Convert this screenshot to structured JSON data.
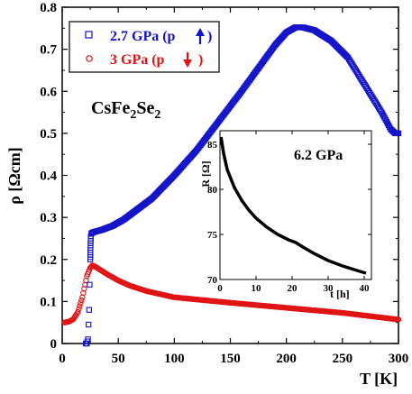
{
  "chart_data": [
    {
      "type": "scatter",
      "xlabel": "T [K]",
      "ylabel": "ρ [Ωcm]",
      "xlim": [
        0,
        300
      ],
      "ylim": [
        0,
        0.8
      ],
      "xticks": [
        "0",
        "50",
        "100",
        "150",
        "200",
        "250",
        "300"
      ],
      "yticks": [
        "0",
        "0.1",
        "0.2",
        "0.3",
        "0.4",
        "0.5",
        "0.6",
        "0.7",
        "0.8"
      ],
      "annotation": {
        "main": "CsFe",
        "sub1": "2",
        "mid": "Se",
        "sub2": "2"
      },
      "legend_position": "top-left",
      "series": [
        {
          "name": "2.7 GPa (p",
          "arrow": "up",
          "marker": "square",
          "color": "#1414c8",
          "points": [
            [
              21,
              0
            ],
            [
              22,
              0
            ],
            [
              23,
              0.01
            ],
            [
              24,
              0.08
            ],
            [
              25,
              0.2
            ],
            [
              25.5,
              0.255
            ],
            [
              26,
              0.262
            ],
            [
              28,
              0.265
            ],
            [
              35,
              0.27
            ],
            [
              45,
              0.28
            ],
            [
              55,
              0.295
            ],
            [
              65,
              0.315
            ],
            [
              80,
              0.345
            ],
            [
              100,
              0.4
            ],
            [
              120,
              0.46
            ],
            [
              140,
              0.53
            ],
            [
              160,
              0.6
            ],
            [
              175,
              0.655
            ],
            [
              190,
              0.71
            ],
            [
              200,
              0.74
            ],
            [
              208,
              0.752
            ],
            [
              215,
              0.752
            ],
            [
              225,
              0.745
            ],
            [
              240,
              0.72
            ],
            [
              255,
              0.68
            ],
            [
              270,
              0.615
            ],
            [
              285,
              0.55
            ],
            [
              293,
              0.51
            ],
            [
              297,
              0.5
            ],
            [
              300,
              0.5
            ]
          ]
        },
        {
          "name": "3 GPa (p",
          "arrow": "down",
          "marker": "circle",
          "color": "#e01414",
          "points": [
            [
              2,
              0.05
            ],
            [
              6,
              0.052
            ],
            [
              10,
              0.058
            ],
            [
              14,
              0.075
            ],
            [
              18,
              0.11
            ],
            [
              22,
              0.16
            ],
            [
              25,
              0.18
            ],
            [
              27,
              0.186
            ],
            [
              30,
              0.182
            ],
            [
              40,
              0.165
            ],
            [
              50,
              0.15
            ],
            [
              60,
              0.138
            ],
            [
              75,
              0.125
            ],
            [
              100,
              0.11
            ],
            [
              150,
              0.097
            ],
            [
              200,
              0.085
            ],
            [
              250,
              0.073
            ],
            [
              300,
              0.057
            ]
          ]
        }
      ]
    },
    {
      "type": "line",
      "title": "6.2 GPa",
      "xlabel": "t [h]",
      "ylabel": "R [Ω]",
      "xlim": [
        0,
        42
      ],
      "ylim": [
        70,
        86.5
      ],
      "xticks": [
        "0",
        "10",
        "20",
        "30",
        "40"
      ],
      "yticks": [
        "70",
        "75",
        "80",
        "85"
      ],
      "series": [
        {
          "color": "#000000",
          "points": [
            [
              0.3,
              85.8
            ],
            [
              1,
              84
            ],
            [
              2,
              82.2
            ],
            [
              4,
              80.2
            ],
            [
              6,
              78.8
            ],
            [
              8,
              77.7
            ],
            [
              10,
              76.8
            ],
            [
              13,
              75.8
            ],
            [
              16,
              75
            ],
            [
              19,
              74.4
            ],
            [
              21,
              74.1
            ],
            [
              23,
              73.6
            ],
            [
              26,
              72.9
            ],
            [
              30,
              72.1
            ],
            [
              34,
              71.5
            ],
            [
              38,
              71
            ],
            [
              40.5,
              70.7
            ]
          ]
        }
      ]
    }
  ]
}
